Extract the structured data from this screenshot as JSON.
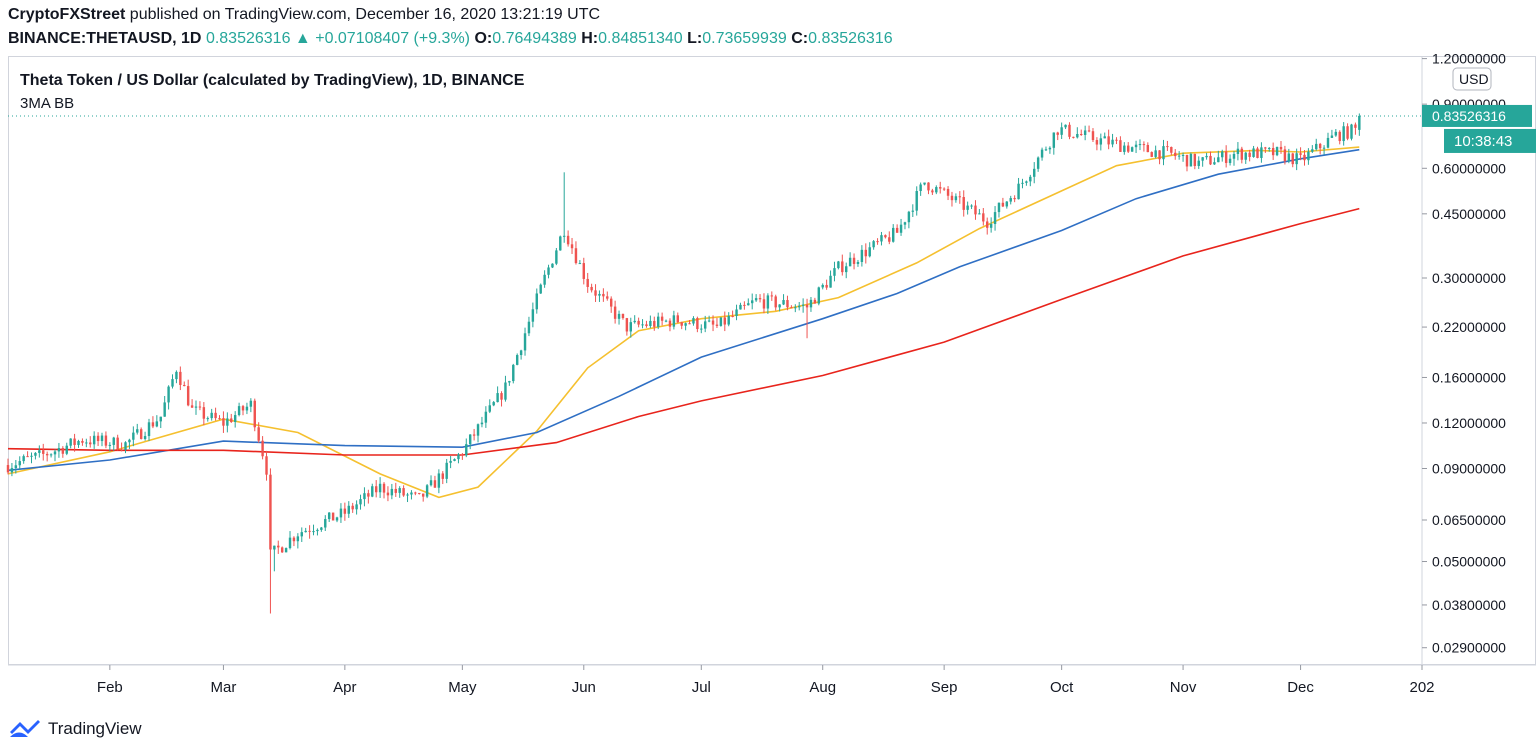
{
  "header": {
    "publisher": "CryptoFXStreet",
    "published_text": " published on TradingView.com, December 16, 2020 13:21:19 UTC",
    "symbol": "BINANCE:THETAUSD, 1D",
    "price": "0.83526316",
    "change_arrow": "▲",
    "change": "+0.07108407 (+9.3%)",
    "o_label": "O:",
    "o": "0.76494389",
    "h_label": "H:",
    "h": "0.84851340",
    "l_label": "L:",
    "l": "0.73659939",
    "c_label": "C:",
    "c": "0.83526316"
  },
  "legend": {
    "title": "Theta Token / US Dollar (calculated by TradingView), 1D, BINANCE",
    "indicator": "3MA BB"
  },
  "price_axis": {
    "currency": "USD",
    "last_price": "0.83526316",
    "countdown": "10:38:43"
  },
  "footer": {
    "brand": "TradingView"
  },
  "colors": {
    "up": "#26a69a",
    "down": "#ef5350",
    "ma_fast": "#f5c02f",
    "ma_mid": "#2f6fc4",
    "ma_slow": "#e8241c",
    "grid": "#e0e3eb"
  },
  "chart_data": {
    "type": "candlestick",
    "y_scale": "log",
    "ylim": [
      0.026,
      1.22
    ],
    "y_ticks": [
      1.2,
      0.9,
      0.6,
      0.45,
      0.3,
      0.22,
      0.16,
      0.12,
      0.09,
      0.065,
      0.05,
      0.038,
      0.029
    ],
    "y_tick_labels": [
      "1.20000000",
      "0.90000000",
      "0.60000000",
      "0.45000000",
      "0.30000000",
      "0.22000000",
      "0.16000000",
      "0.12000000",
      "0.09000000",
      "0.06500000",
      "0.05000000",
      "0.03800000",
      "0.02900000"
    ],
    "x_start": "2020-01-06",
    "x_end": "2021-01-01",
    "x_tick_dates": [
      "2020-02-01",
      "2020-03-01",
      "2020-04-01",
      "2020-05-01",
      "2020-06-01",
      "2020-07-01",
      "2020-08-01",
      "2020-09-01",
      "2020-10-01",
      "2020-11-01",
      "2020-12-01",
      "2021-01-01"
    ],
    "x_tick_labels": [
      "Feb",
      "Mar",
      "Apr",
      "May",
      "Jun",
      "Jul",
      "Aug",
      "Sep",
      "Oct",
      "Nov",
      "Dec",
      "202"
    ],
    "last_candle": {
      "date": "2020-12-16",
      "open": 0.76494389,
      "high": 0.8485134,
      "low": 0.73659939,
      "close": 0.83526316
    },
    "price_path": [
      [
        "2020-01-06",
        0.092
      ],
      [
        "2020-01-15",
        0.098
      ],
      [
        "2020-01-25",
        0.108
      ],
      [
        "2020-02-05",
        0.105
      ],
      [
        "2020-02-14",
        0.125
      ],
      [
        "2020-02-18",
        0.17
      ],
      [
        "2020-02-22",
        0.13
      ],
      [
        "2020-03-01",
        0.12
      ],
      [
        "2020-03-08",
        0.135
      ],
      [
        "2020-03-12",
        0.09
      ],
      [
        "2020-03-13",
        0.052
      ],
      [
        "2020-03-20",
        0.06
      ],
      [
        "2020-04-01",
        0.068
      ],
      [
        "2020-04-10",
        0.08
      ],
      [
        "2020-04-20",
        0.074
      ],
      [
        "2020-05-01",
        0.1
      ],
      [
        "2020-05-12",
        0.15
      ],
      [
        "2020-05-22",
        0.3
      ],
      [
        "2020-05-27",
        0.41
      ],
      [
        "2020-06-02",
        0.29
      ],
      [
        "2020-06-12",
        0.22
      ],
      [
        "2020-06-25",
        0.23
      ],
      [
        "2020-07-05",
        0.22
      ],
      [
        "2020-07-15",
        0.26
      ],
      [
        "2020-07-28",
        0.25
      ],
      [
        "2020-08-05",
        0.32
      ],
      [
        "2020-08-20",
        0.4
      ],
      [
        "2020-08-27",
        0.55
      ],
      [
        "2020-09-05",
        0.48
      ],
      [
        "2020-09-12",
        0.43
      ],
      [
        "2020-09-20",
        0.53
      ],
      [
        "2020-09-30",
        0.77
      ],
      [
        "2020-10-10",
        0.72
      ],
      [
        "2020-10-20",
        0.68
      ],
      [
        "2020-10-28",
        0.66
      ],
      [
        "2020-11-05",
        0.62
      ],
      [
        "2020-11-15",
        0.66
      ],
      [
        "2020-11-25",
        0.66
      ],
      [
        "2020-12-01",
        0.63
      ],
      [
        "2020-12-10",
        0.74
      ],
      [
        "2020-12-15",
        0.765
      ]
    ],
    "series": [
      {
        "name": "",
        "color": "#f5c02f",
        "points": [
          [
            "2020-01-06",
            0.087
          ],
          [
            "2020-02-01",
            0.1
          ],
          [
            "2020-03-01",
            0.123
          ],
          [
            "2020-03-20",
            0.113
          ],
          [
            "2020-04-10",
            0.087
          ],
          [
            "2020-04-25",
            0.075
          ],
          [
            "2020-05-05",
            0.08
          ],
          [
            "2020-05-20",
            0.114
          ],
          [
            "2020-06-02",
            0.17
          ],
          [
            "2020-06-15",
            0.215
          ],
          [
            "2020-07-01",
            0.232
          ],
          [
            "2020-07-20",
            0.243
          ],
          [
            "2020-08-05",
            0.265
          ],
          [
            "2020-08-25",
            0.33
          ],
          [
            "2020-09-10",
            0.41
          ],
          [
            "2020-10-01",
            0.52
          ],
          [
            "2020-10-15",
            0.61
          ],
          [
            "2020-11-01",
            0.66
          ],
          [
            "2020-11-20",
            0.672
          ],
          [
            "2020-12-01",
            0.665
          ],
          [
            "2020-12-16",
            0.686
          ]
        ]
      },
      {
        "name": "",
        "color": "#2f6fc4",
        "points": [
          [
            "2020-01-06",
            0.089
          ],
          [
            "2020-02-01",
            0.095
          ],
          [
            "2020-03-01",
            0.107
          ],
          [
            "2020-04-01",
            0.104
          ],
          [
            "2020-05-01",
            0.103
          ],
          [
            "2020-05-20",
            0.113
          ],
          [
            "2020-06-10",
            0.142
          ],
          [
            "2020-07-01",
            0.182
          ],
          [
            "2020-08-01",
            0.232
          ],
          [
            "2020-08-20",
            0.272
          ],
          [
            "2020-09-05",
            0.322
          ],
          [
            "2020-10-01",
            0.405
          ],
          [
            "2020-10-20",
            0.495
          ],
          [
            "2020-11-10",
            0.578
          ],
          [
            "2020-12-01",
            0.637
          ],
          [
            "2020-12-16",
            0.675
          ]
        ]
      },
      {
        "name": "",
        "color": "#e8241c",
        "points": [
          [
            "2020-01-06",
            0.102
          ],
          [
            "2020-02-01",
            0.101
          ],
          [
            "2020-03-01",
            0.101
          ],
          [
            "2020-04-01",
            0.098
          ],
          [
            "2020-05-01",
            0.098
          ],
          [
            "2020-05-25",
            0.106
          ],
          [
            "2020-06-15",
            0.125
          ],
          [
            "2020-07-01",
            0.138
          ],
          [
            "2020-08-01",
            0.162
          ],
          [
            "2020-09-01",
            0.2
          ],
          [
            "2020-10-01",
            0.262
          ],
          [
            "2020-11-01",
            0.345
          ],
          [
            "2020-12-01",
            0.423
          ],
          [
            "2020-12-16",
            0.465
          ]
        ]
      }
    ]
  }
}
